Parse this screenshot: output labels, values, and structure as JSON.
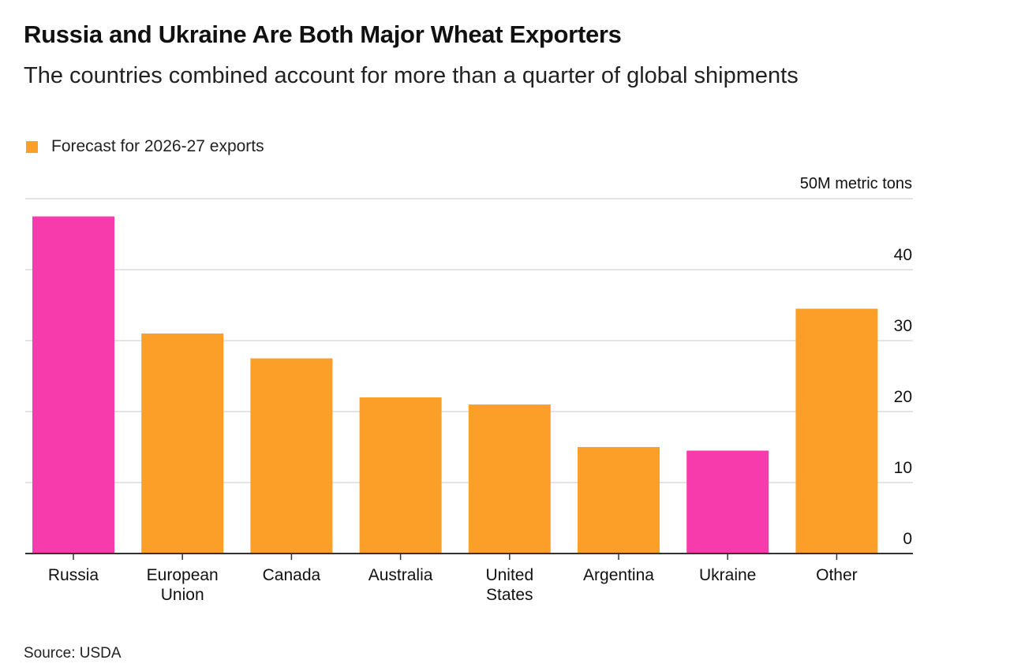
{
  "chart_data": {
    "type": "bar",
    "title": "Russia and Ukraine Are Both Major Wheat Exporters",
    "subtitle": "The countries combined account for more than a quarter of global shipments",
    "legend": [
      {
        "label": "Forecast for 2026-27 exports",
        "color": "#fb9f29"
      }
    ],
    "unit_label": "50M metric tons",
    "categories": [
      "Russia",
      "European Union",
      "Canada",
      "Australia",
      "United States",
      "Argentina",
      "Ukraine",
      "Other"
    ],
    "category_lines": [
      [
        "Russia"
      ],
      [
        "European",
        "Union"
      ],
      [
        "Canada"
      ],
      [
        "Australia"
      ],
      [
        "United",
        "States"
      ],
      [
        "Argentina"
      ],
      [
        "Ukraine"
      ],
      [
        "Other"
      ]
    ],
    "series": [
      {
        "values": [
          47.5,
          31,
          27.5,
          22,
          21,
          15,
          14.5,
          34.5
        ]
      }
    ],
    "highlighted": [
      "Russia",
      "Ukraine"
    ],
    "colors": {
      "default": "#fb9f29",
      "highlight": "#f73bac"
    },
    "yticks": [
      0,
      10,
      20,
      30,
      40
    ],
    "ylim": [
      0,
      50
    ],
    "grid": true,
    "axis_side": "right",
    "source": "Source: USDA"
  }
}
